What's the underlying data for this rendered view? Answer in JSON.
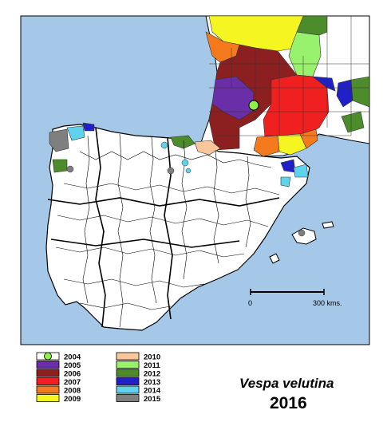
{
  "title": {
    "species": "Vespa velutina",
    "year": "2016"
  },
  "scale_bar": {
    "start_label": "0",
    "end_label": "300 kms."
  },
  "legend": [
    {
      "year": "2004",
      "color": "#8cf24a",
      "symbol": "circle"
    },
    {
      "year": "2005",
      "color": "#6a2fa8",
      "symbol": "box"
    },
    {
      "year": "2006",
      "color": "#8c1f1f",
      "symbol": "box"
    },
    {
      "year": "2007",
      "color": "#f02020",
      "symbol": "box"
    },
    {
      "year": "2008",
      "color": "#f57a1e",
      "symbol": "box"
    },
    {
      "year": "2009",
      "color": "#f5f522",
      "symbol": "box"
    },
    {
      "year": "2010",
      "color": "#f9c79a",
      "symbol": "box"
    },
    {
      "year": "2011",
      "color": "#99f26e",
      "symbol": "box"
    },
    {
      "year": "2012",
      "color": "#4d8c2a",
      "symbol": "box"
    },
    {
      "year": "2013",
      "color": "#2020c8",
      "symbol": "box"
    },
    {
      "year": "2014",
      "color": "#5fd3ee",
      "symbol": "box"
    },
    {
      "year": "2015",
      "color": "#7f7f7f",
      "symbol": "box"
    }
  ],
  "colors": {
    "sea": "#a6c8e8",
    "land": "#ffffff",
    "border": "#000000"
  }
}
